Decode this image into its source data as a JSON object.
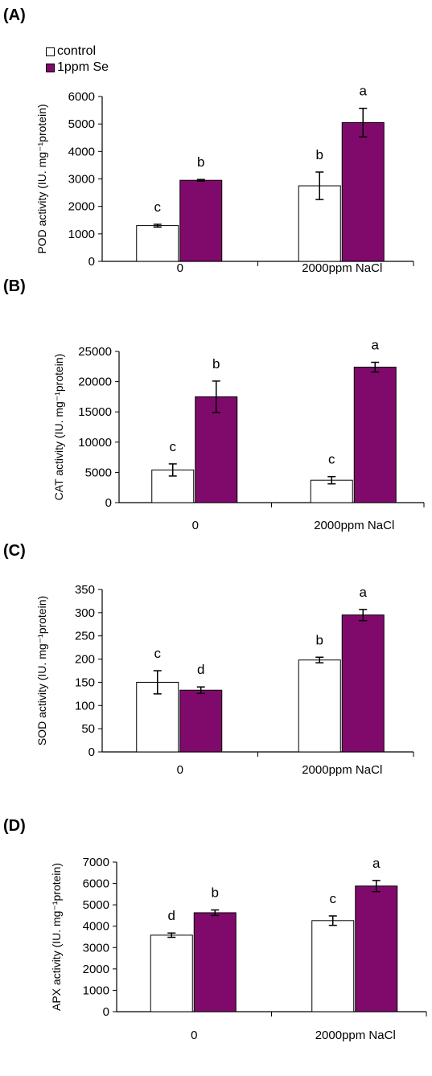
{
  "legend": {
    "items": [
      {
        "label": "control",
        "color": "#ffffff"
      },
      {
        "label": "1ppm Se",
        "color": "#800a6b"
      }
    ]
  },
  "chart_data": [
    {
      "type": "bar",
      "panel_label": "(A)",
      "categories": [
        "0",
        "2000ppm NaCl"
      ],
      "series": [
        {
          "name": "control",
          "values": [
            1300,
            2750
          ],
          "errors": [
            50,
            500
          ],
          "letters": [
            "c",
            "b"
          ]
        },
        {
          "name": "1ppm Se",
          "values": [
            2950,
            5050
          ],
          "errors": [
            30,
            520
          ],
          "letters": [
            "b",
            "a"
          ]
        }
      ],
      "ylabel": "POD activity (IU. mg⁻¹protein)",
      "ylim": [
        0,
        6000
      ],
      "yticks": [
        0,
        1000,
        2000,
        3000,
        4000,
        5000,
        6000
      ]
    },
    {
      "type": "bar",
      "panel_label": "(B)",
      "categories": [
        "0",
        "2000ppm NaCl"
      ],
      "series": [
        {
          "name": "control",
          "values": [
            5400,
            3700
          ],
          "errors": [
            1000,
            600
          ],
          "letters": [
            "c",
            "c"
          ]
        },
        {
          "name": "1ppm Se",
          "values": [
            17500,
            22400
          ],
          "errors": [
            2600,
            800
          ],
          "letters": [
            "b",
            "a"
          ]
        }
      ],
      "ylabel": "CAT activity (IU. mg⁻¹protein)",
      "ylim": [
        0,
        25000
      ],
      "yticks": [
        0,
        5000,
        10000,
        15000,
        20000,
        25000
      ]
    },
    {
      "type": "bar",
      "panel_label": "(C)",
      "categories": [
        "0",
        "2000ppm NaCl"
      ],
      "series": [
        {
          "name": "control",
          "values": [
            150,
            198
          ],
          "errors": [
            25,
            6
          ],
          "letters": [
            "c",
            "b"
          ]
        },
        {
          "name": "1ppm Se",
          "values": [
            133,
            295
          ],
          "errors": [
            7,
            12
          ],
          "letters": [
            "d",
            "a"
          ]
        }
      ],
      "ylabel": "SOD activity (IU. mg⁻¹protein)",
      "ylim": [
        0,
        350
      ],
      "yticks": [
        0,
        50,
        100,
        150,
        200,
        250,
        300,
        350
      ]
    },
    {
      "type": "bar",
      "panel_label": "(D)",
      "categories": [
        "0",
        "2000ppm NaCl"
      ],
      "series": [
        {
          "name": "control",
          "values": [
            3580,
            4260
          ],
          "errors": [
            100,
            220
          ],
          "letters": [
            "d",
            "c"
          ]
        },
        {
          "name": "1ppm Se",
          "values": [
            4630,
            5880
          ],
          "errors": [
            130,
            260
          ],
          "letters": [
            "b",
            "a"
          ]
        }
      ],
      "ylabel": "APX activity (IU. mg⁻¹protein)",
      "ylim": [
        0,
        7000
      ],
      "yticks": [
        0,
        1000,
        2000,
        3000,
        4000,
        5000,
        6000,
        7000
      ]
    }
  ]
}
